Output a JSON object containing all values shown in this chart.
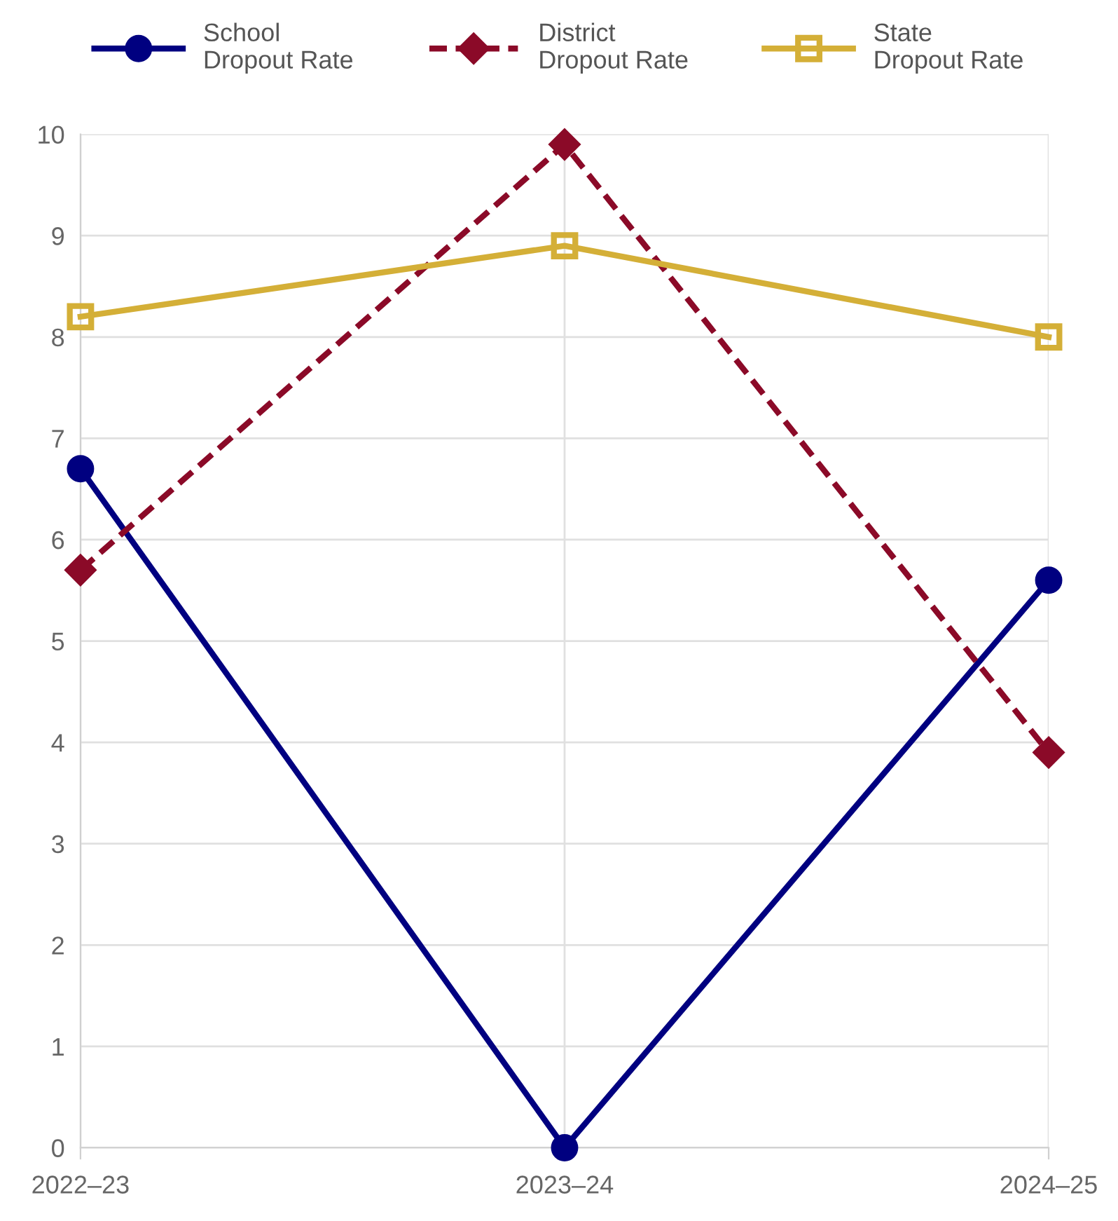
{
  "chart_data": {
    "type": "line",
    "categories": [
      "2022–23",
      "2023–24",
      "2024–25"
    ],
    "series": [
      {
        "name": "School Dropout Rate",
        "color": "#000080",
        "values": [
          6.7,
          0,
          5.6
        ],
        "marker": "circle",
        "line_style": "solid"
      },
      {
        "name": "District Dropout Rate",
        "color": "#8b0a28",
        "values": [
          5.7,
          9.9,
          3.9
        ],
        "marker": "diamond",
        "line_style": "dashed"
      },
      {
        "name": "State Dropout Rate",
        "color": "#d4af37",
        "values": [
          8.2,
          8.9,
          8.0
        ],
        "marker": "square",
        "line_style": "solid"
      }
    ],
    "ylim": [
      0,
      10
    ],
    "yticks": [
      0,
      1,
      2,
      3,
      4,
      5,
      6,
      7,
      8,
      9,
      10
    ],
    "grid": true,
    "legend": "top"
  }
}
